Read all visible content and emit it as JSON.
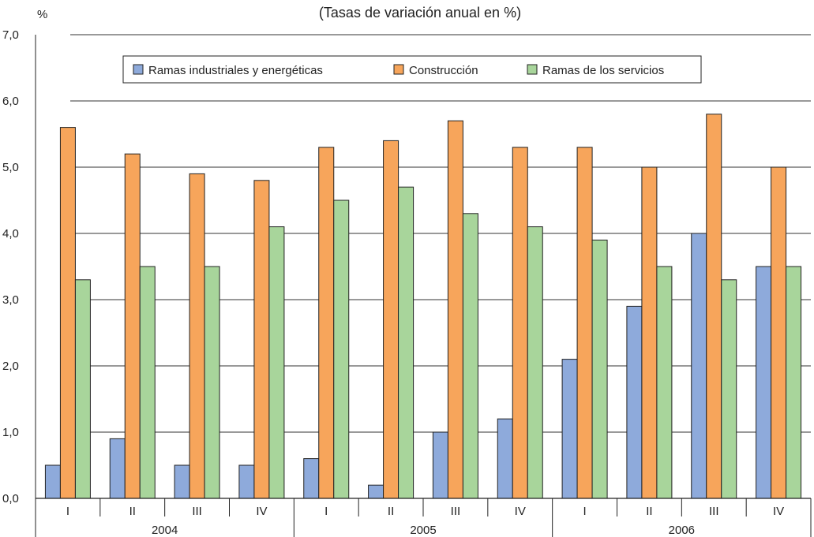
{
  "chart_data": {
    "type": "bar",
    "subtitle": "(Tasas de variación anual en %)",
    "ylabel": "%",
    "ylim": [
      0,
      7
    ],
    "yticks": [
      "0,0",
      "1,0",
      "2,0",
      "3,0",
      "4,0",
      "5,0",
      "6,0",
      "7,0"
    ],
    "categories": [
      "I",
      "II",
      "III",
      "IV",
      "I",
      "II",
      "III",
      "IV",
      "I",
      "II",
      "III",
      "IV"
    ],
    "groups": [
      {
        "label": "2004",
        "count": 4
      },
      {
        "label": "2005",
        "count": 4
      },
      {
        "label": "2006",
        "count": 4
      }
    ],
    "grid": true,
    "legend_position": "top",
    "series": [
      {
        "name": "Ramas industriales y energéticas",
        "color": "#8eaadb",
        "values": [
          0.5,
          0.9,
          0.5,
          0.5,
          0.6,
          0.2,
          1.0,
          1.2,
          2.1,
          2.9,
          4.0,
          3.5
        ]
      },
      {
        "name": "Construcción",
        "color": "#f7a55b",
        "values": [
          5.6,
          5.2,
          4.9,
          4.8,
          5.3,
          5.4,
          5.7,
          5.3,
          5.3,
          5.0,
          5.8,
          5.0
        ]
      },
      {
        "name": "Ramas de los servicios",
        "color": "#a8d59b",
        "values": [
          3.3,
          3.5,
          3.5,
          4.1,
          4.5,
          4.7,
          4.3,
          4.1,
          3.9,
          3.5,
          3.3,
          3.5
        ]
      }
    ]
  }
}
